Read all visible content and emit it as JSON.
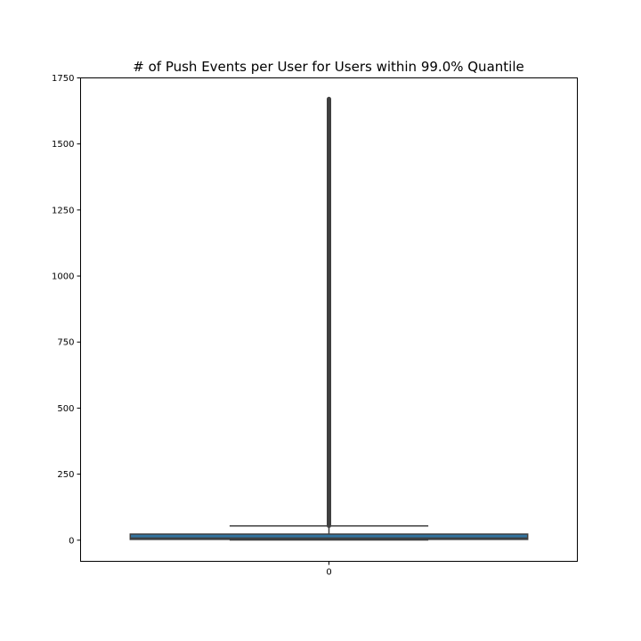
{
  "chart_data": {
    "type": "box",
    "title": "# of Push Events per User for Users within 99.0% Quantile",
    "xlabel": "",
    "ylabel": "",
    "categories": [
      "0"
    ],
    "ylim": [
      -80,
      1750
    ],
    "yticks": [
      0,
      250,
      500,
      750,
      1000,
      1250,
      1500,
      1750
    ],
    "grid": false,
    "boxes": [
      {
        "category": "0",
        "whisker_low": 1,
        "q1": 3,
        "median": 8,
        "q3": 23,
        "whisker_high": 54,
        "outliers_min": 55,
        "outliers_max": 1670
      }
    ],
    "colors": {
      "box_fill": "#3274a1",
      "line": "#3f3f3f",
      "axes": "#000000"
    }
  }
}
